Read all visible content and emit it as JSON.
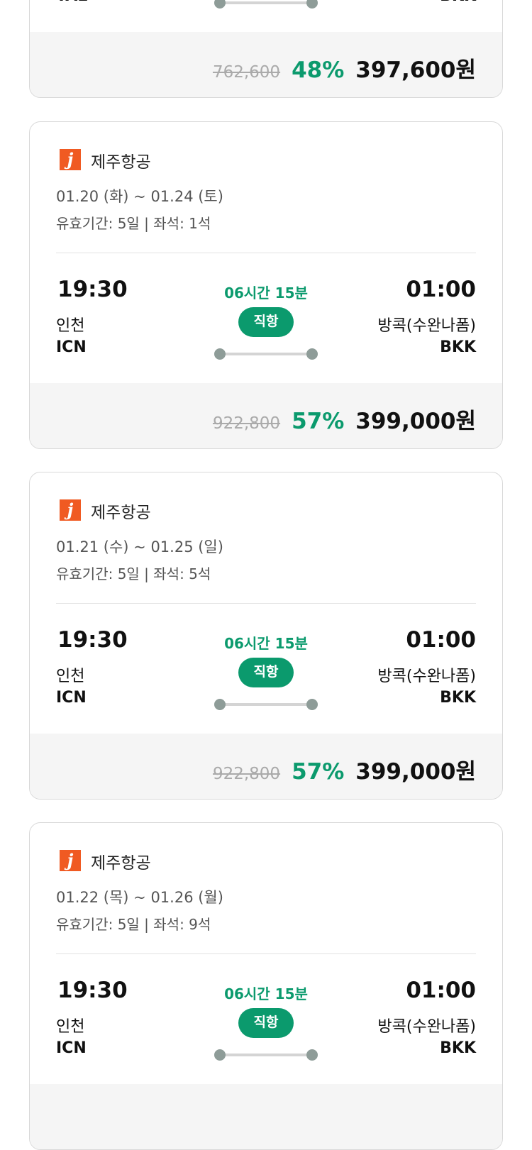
{
  "colors": {
    "accent": "#0b9a6d",
    "logo": "#f05a22",
    "footer_bg": "#f5f5f5"
  },
  "flights": [
    {
      "airline": "",
      "dates": "",
      "validity": "",
      "dep_time": "",
      "dep_city": "",
      "dep_code": "TAE",
      "duration": "",
      "type": "",
      "arr_time": "",
      "arr_city": "",
      "arr_code": "BKK",
      "original_price": "762,600",
      "discount": "48%",
      "price": "397,600원"
    },
    {
      "airline": "제주항공",
      "logo_letter": "j",
      "dates": "01.20 (화) ~ 01.24 (토)",
      "validity": "유효기간: 5일 | 좌석: 1석",
      "dep_time": "19:30",
      "dep_city": "인천",
      "dep_code": "ICN",
      "duration": "06시간 15분",
      "type": "직항",
      "arr_time": "01:00",
      "arr_city": "방콕(수완나폼)",
      "arr_code": "BKK",
      "original_price": "922,800",
      "discount": "57%",
      "price": "399,000원"
    },
    {
      "airline": "제주항공",
      "logo_letter": "j",
      "dates": "01.21 (수) ~ 01.25 (일)",
      "validity": "유효기간: 5일 | 좌석: 5석",
      "dep_time": "19:30",
      "dep_city": "인천",
      "dep_code": "ICN",
      "duration": "06시간 15분",
      "type": "직항",
      "arr_time": "01:00",
      "arr_city": "방콕(수완나폼)",
      "arr_code": "BKK",
      "original_price": "922,800",
      "discount": "57%",
      "price": "399,000원"
    },
    {
      "airline": "제주항공",
      "logo_letter": "j",
      "dates": "01.22 (목) ~ 01.26 (월)",
      "validity": "유효기간: 5일 | 좌석: 9석",
      "dep_time": "19:30",
      "dep_city": "인천",
      "dep_code": "ICN",
      "duration": "06시간 15분",
      "type": "직항",
      "arr_time": "01:00",
      "arr_city": "방콕(수완나폼)",
      "arr_code": "BKK",
      "original_price": "",
      "discount": "",
      "price": ""
    }
  ]
}
